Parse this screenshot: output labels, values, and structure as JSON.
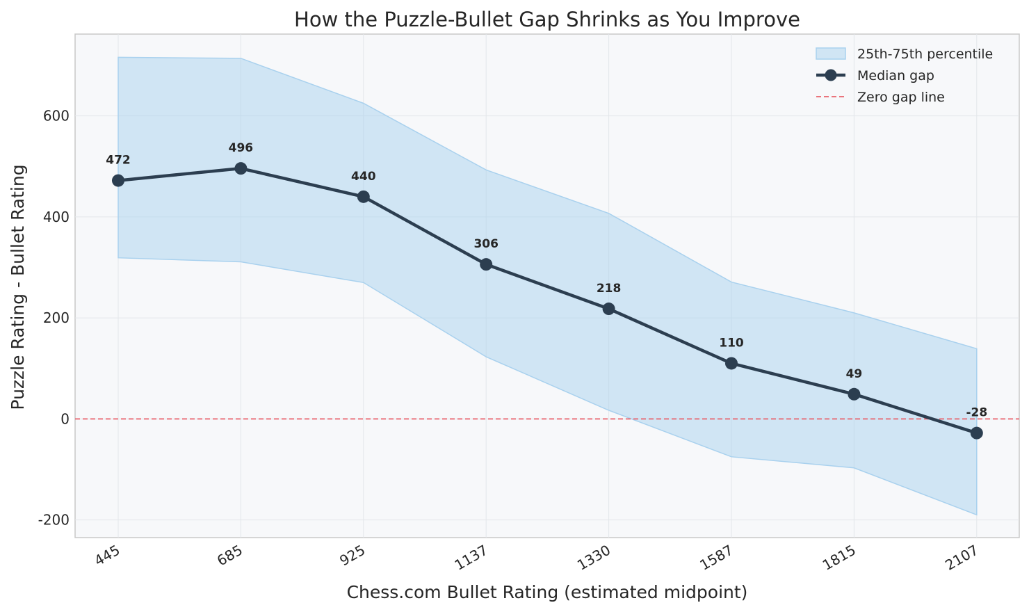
{
  "chart_data": {
    "type": "line",
    "title": "How the Puzzle-Bullet Gap Shrinks as You Improve",
    "xlabel": "Chess.com Bullet Rating (estimated midpoint)",
    "ylabel": "Puzzle Rating - Bullet Rating",
    "categories": [
      "445",
      "685",
      "925",
      "1137",
      "1330",
      "1587",
      "1815",
      "2107"
    ],
    "series": [
      {
        "name": "Median gap",
        "values": [
          472,
          496,
          440,
          306,
          218,
          110,
          49,
          -28
        ],
        "color": "#2c3e50"
      }
    ],
    "band": {
      "name": "25th-75th percentile",
      "upper": [
        716,
        714,
        625,
        493,
        407,
        271,
        210,
        139
      ],
      "lower": [
        319,
        311,
        270,
        123,
        17,
        -75,
        -97,
        -190
      ],
      "color": "#a9d1ee"
    },
    "reference_line": {
      "name": "Zero gap line",
      "y": 0,
      "color": "#e8616b"
    },
    "ylim": [
      -235,
      762
    ],
    "yticks": [
      -200,
      0,
      200,
      400,
      600
    ],
    "grid": true,
    "legend_position": "top-right",
    "background_color": "#f7f8fa"
  }
}
